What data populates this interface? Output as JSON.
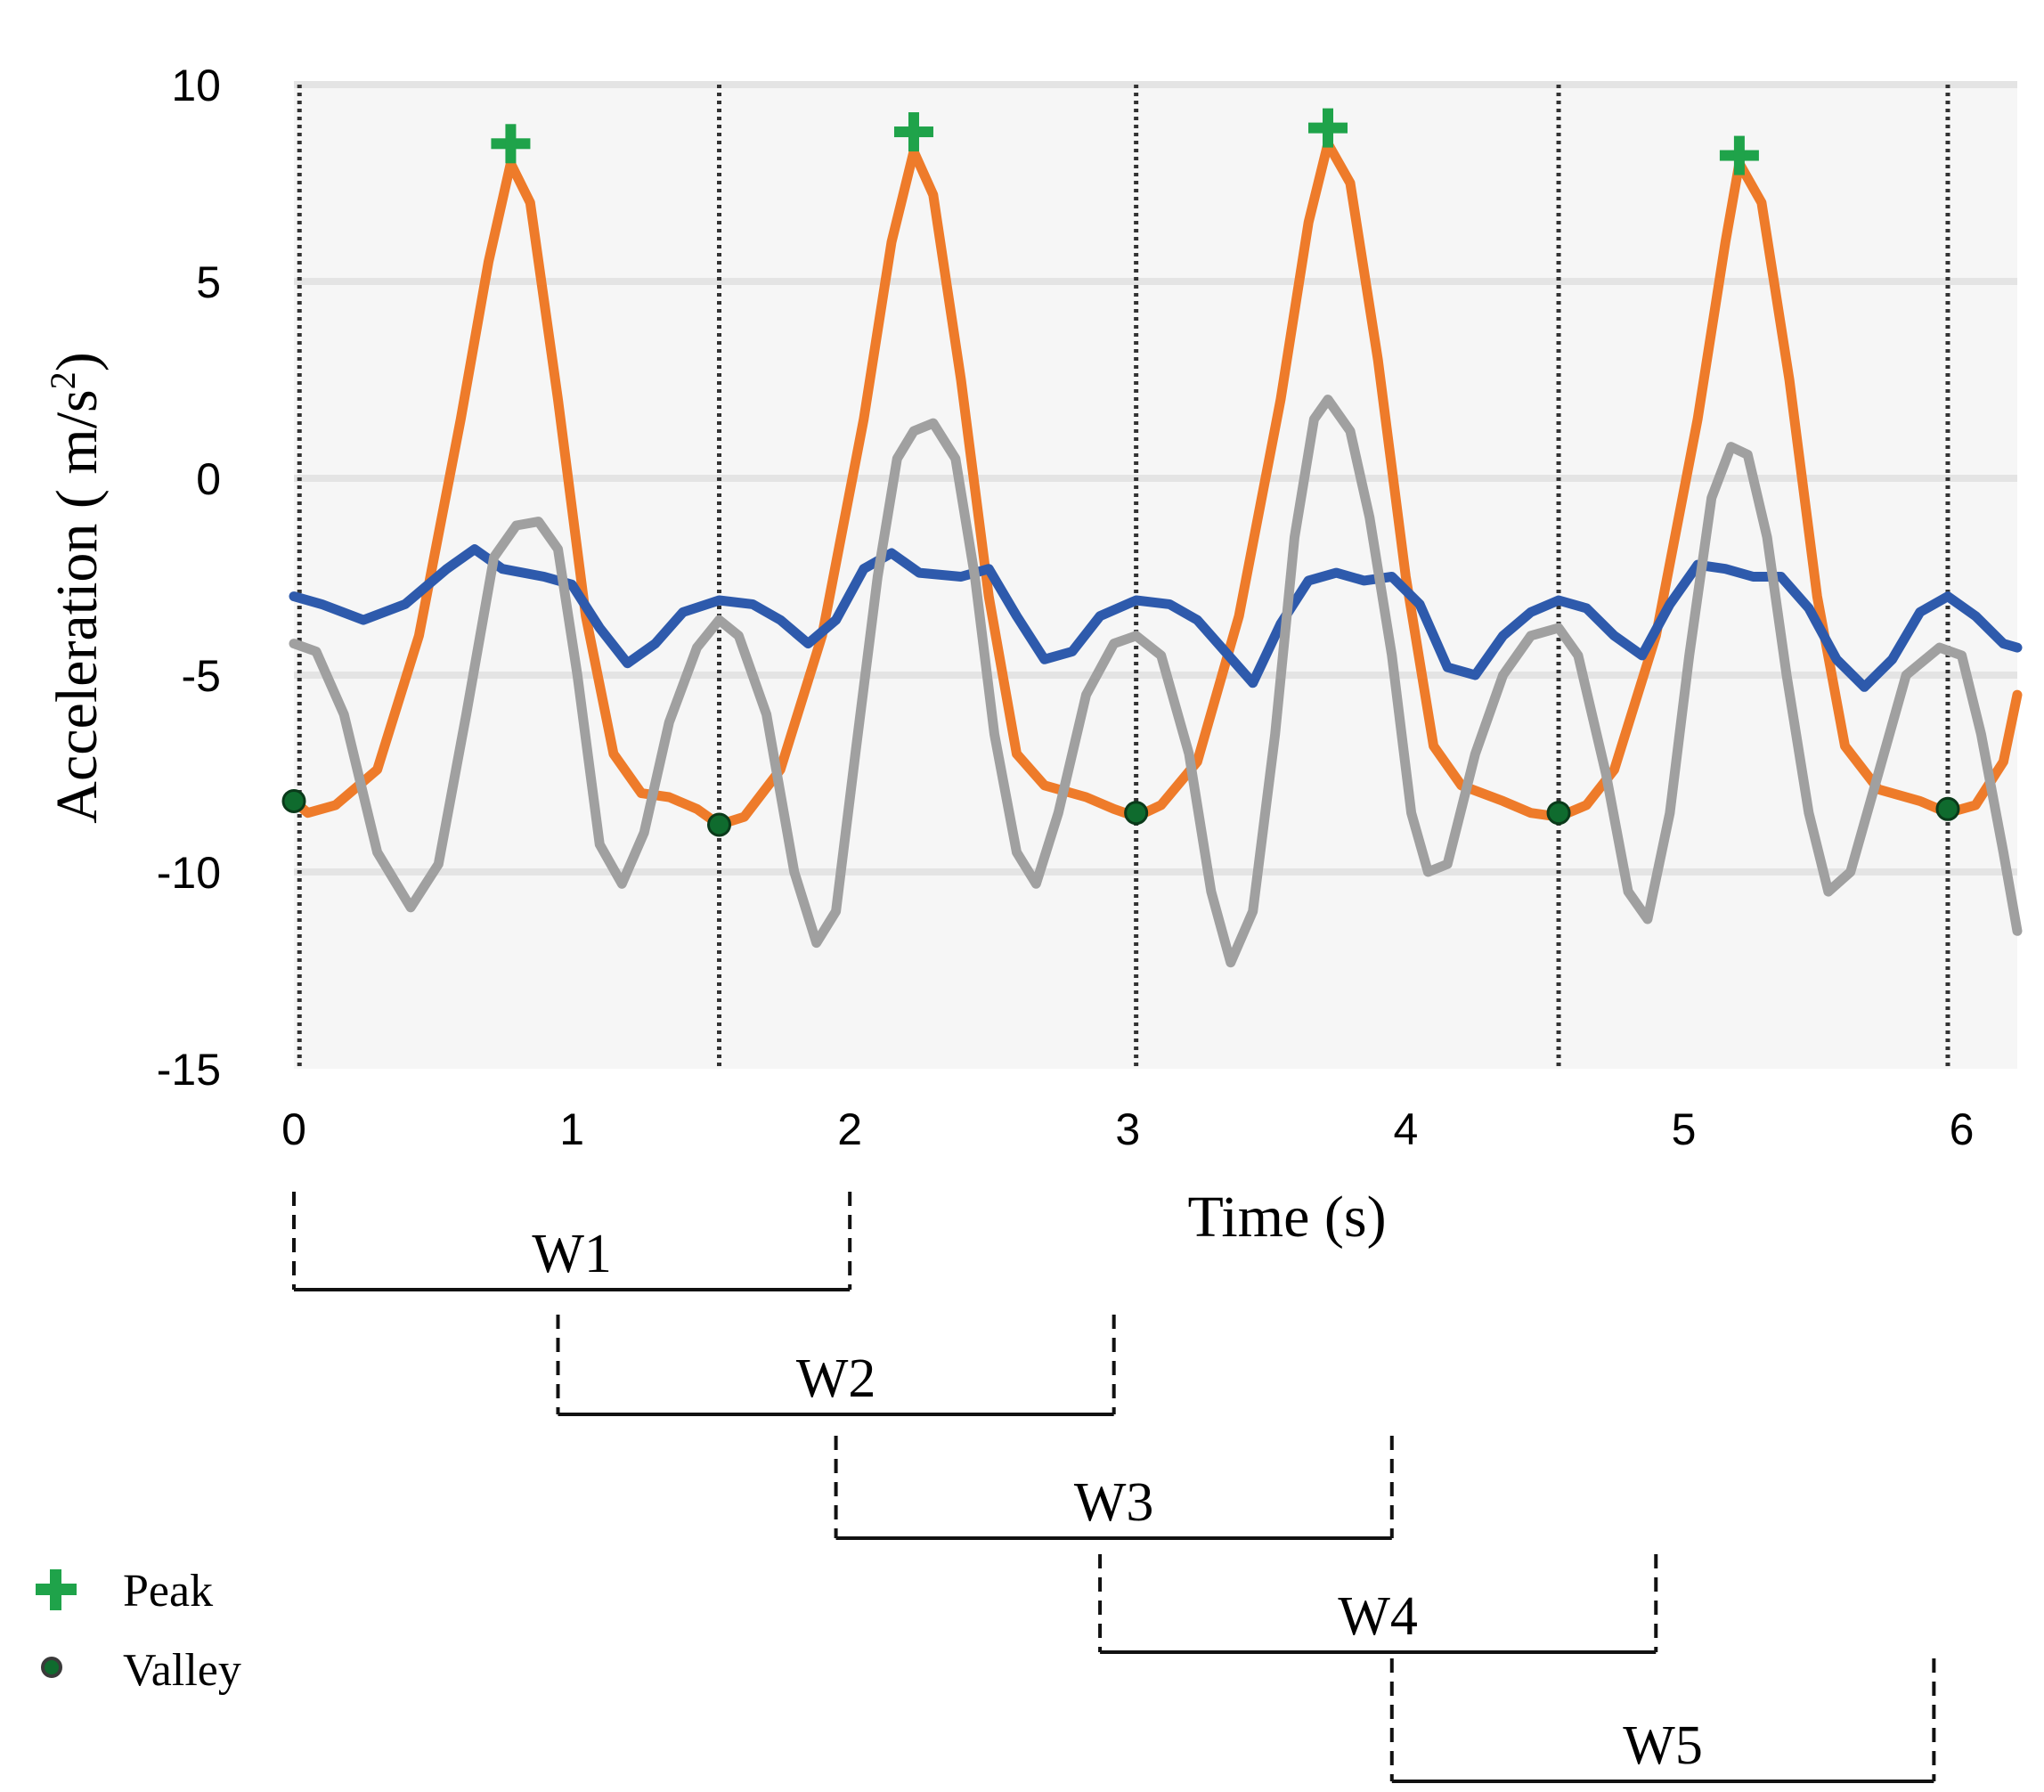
{
  "chart_data": {
    "type": "line",
    "xlabel": "Time (s)",
    "ylabel_text": "Acceleration ( m/s",
    "ylabel_sup": "2",
    "ylabel_close": ")",
    "xlim": [
      0,
      6.2
    ],
    "ylim": [
      -15,
      10
    ],
    "x_ticks": [
      0,
      1,
      2,
      3,
      4,
      5,
      6
    ],
    "y_ticks": [
      10,
      5,
      0,
      -5,
      -10,
      -15
    ],
    "grid": "horizontal",
    "segment_boundaries": [
      0.02,
      1.53,
      3.03,
      4.55,
      5.95
    ],
    "series": [
      {
        "name": "orange",
        "color": "#EE7B2A",
        "points": [
          [
            0,
            -8.2
          ],
          [
            0.05,
            -8.5
          ],
          [
            0.15,
            -8.3
          ],
          [
            0.3,
            -7.4
          ],
          [
            0.45,
            -4
          ],
          [
            0.6,
            1.5
          ],
          [
            0.7,
            5.5
          ],
          [
            0.78,
            8
          ],
          [
            0.85,
            7
          ],
          [
            0.95,
            2
          ],
          [
            1.05,
            -3.5
          ],
          [
            1.15,
            -7
          ],
          [
            1.25,
            -8
          ],
          [
            1.35,
            -8.1
          ],
          [
            1.45,
            -8.4
          ],
          [
            1.53,
            -8.8
          ],
          [
            1.62,
            -8.6
          ],
          [
            1.75,
            -7.4
          ],
          [
            1.9,
            -4
          ],
          [
            2.05,
            1.5
          ],
          [
            2.15,
            6
          ],
          [
            2.23,
            8.3
          ],
          [
            2.3,
            7.2
          ],
          [
            2.4,
            2.5
          ],
          [
            2.5,
            -3
          ],
          [
            2.6,
            -7
          ],
          [
            2.7,
            -7.8
          ],
          [
            2.85,
            -8.1
          ],
          [
            2.95,
            -8.4
          ],
          [
            3.03,
            -8.6
          ],
          [
            3.12,
            -8.3
          ],
          [
            3.25,
            -7.2
          ],
          [
            3.4,
            -3.5
          ],
          [
            3.55,
            2
          ],
          [
            3.65,
            6.5
          ],
          [
            3.72,
            8.5
          ],
          [
            3.8,
            7.5
          ],
          [
            3.9,
            3
          ],
          [
            4.0,
            -2.5
          ],
          [
            4.1,
            -6.8
          ],
          [
            4.2,
            -7.8
          ],
          [
            4.35,
            -8.2
          ],
          [
            4.45,
            -8.5
          ],
          [
            4.55,
            -8.6
          ],
          [
            4.65,
            -8.3
          ],
          [
            4.75,
            -7.4
          ],
          [
            4.9,
            -4
          ],
          [
            5.05,
            1.5
          ],
          [
            5.15,
            6
          ],
          [
            5.2,
            8
          ],
          [
            5.28,
            7
          ],
          [
            5.38,
            2.5
          ],
          [
            5.48,
            -3
          ],
          [
            5.58,
            -6.8
          ],
          [
            5.7,
            -7.9
          ],
          [
            5.85,
            -8.2
          ],
          [
            5.95,
            -8.5
          ],
          [
            6.05,
            -8.3
          ],
          [
            6.15,
            -7.2
          ],
          [
            6.2,
            -5.5
          ]
        ]
      },
      {
        "name": "blue",
        "color": "#2E5AAC",
        "points": [
          [
            0,
            -3
          ],
          [
            0.1,
            -3.2
          ],
          [
            0.25,
            -3.6
          ],
          [
            0.4,
            -3.2
          ],
          [
            0.55,
            -2.3
          ],
          [
            0.65,
            -1.8
          ],
          [
            0.75,
            -2.3
          ],
          [
            0.9,
            -2.5
          ],
          [
            1.0,
            -2.7
          ],
          [
            1.1,
            -3.8
          ],
          [
            1.2,
            -4.7
          ],
          [
            1.3,
            -4.2
          ],
          [
            1.4,
            -3.4
          ],
          [
            1.53,
            -3.1
          ],
          [
            1.65,
            -3.2
          ],
          [
            1.75,
            -3.6
          ],
          [
            1.85,
            -4.2
          ],
          [
            1.95,
            -3.6
          ],
          [
            2.05,
            -2.3
          ],
          [
            2.15,
            -1.9
          ],
          [
            2.25,
            -2.4
          ],
          [
            2.4,
            -2.5
          ],
          [
            2.5,
            -2.3
          ],
          [
            2.6,
            -3.5
          ],
          [
            2.7,
            -4.6
          ],
          [
            2.8,
            -4.4
          ],
          [
            2.9,
            -3.5
          ],
          [
            3.03,
            -3.1
          ],
          [
            3.15,
            -3.2
          ],
          [
            3.25,
            -3.6
          ],
          [
            3.35,
            -4.4
          ],
          [
            3.45,
            -5.2
          ],
          [
            3.55,
            -3.7
          ],
          [
            3.65,
            -2.6
          ],
          [
            3.75,
            -2.4
          ],
          [
            3.85,
            -2.6
          ],
          [
            3.95,
            -2.5
          ],
          [
            4.05,
            -3.2
          ],
          [
            4.15,
            -4.8
          ],
          [
            4.25,
            -5
          ],
          [
            4.35,
            -4
          ],
          [
            4.45,
            -3.4
          ],
          [
            4.55,
            -3.1
          ],
          [
            4.65,
            -3.3
          ],
          [
            4.75,
            -4
          ],
          [
            4.85,
            -4.5
          ],
          [
            4.95,
            -3.2
          ],
          [
            5.05,
            -2.2
          ],
          [
            5.15,
            -2.3
          ],
          [
            5.25,
            -2.5
          ],
          [
            5.35,
            -2.5
          ],
          [
            5.45,
            -3.3
          ],
          [
            5.55,
            -4.6
          ],
          [
            5.65,
            -5.3
          ],
          [
            5.75,
            -4.6
          ],
          [
            5.85,
            -3.4
          ],
          [
            5.95,
            -3
          ],
          [
            6.05,
            -3.5
          ],
          [
            6.15,
            -4.2
          ],
          [
            6.2,
            -4.3
          ]
        ]
      },
      {
        "name": "gray",
        "color": "#A0A0A0",
        "points": [
          [
            0,
            -4.2
          ],
          [
            0.08,
            -4.4
          ],
          [
            0.18,
            -6
          ],
          [
            0.3,
            -9.5
          ],
          [
            0.42,
            -10.9
          ],
          [
            0.52,
            -9.8
          ],
          [
            0.62,
            -6
          ],
          [
            0.72,
            -2
          ],
          [
            0.8,
            -1.2
          ],
          [
            0.88,
            -1.1
          ],
          [
            0.95,
            -1.8
          ],
          [
            1.02,
            -5
          ],
          [
            1.1,
            -9.3
          ],
          [
            1.18,
            -10.3
          ],
          [
            1.26,
            -9
          ],
          [
            1.35,
            -6.2
          ],
          [
            1.45,
            -4.3
          ],
          [
            1.53,
            -3.6
          ],
          [
            1.6,
            -4
          ],
          [
            1.7,
            -6
          ],
          [
            1.8,
            -10
          ],
          [
            1.88,
            -11.8
          ],
          [
            1.95,
            -11
          ],
          [
            2.02,
            -7
          ],
          [
            2.1,
            -2.5
          ],
          [
            2.17,
            0.5
          ],
          [
            2.23,
            1.2
          ],
          [
            2.3,
            1.4
          ],
          [
            2.38,
            0.5
          ],
          [
            2.45,
            -2.5
          ],
          [
            2.52,
            -6.5
          ],
          [
            2.6,
            -9.5
          ],
          [
            2.67,
            -10.3
          ],
          [
            2.75,
            -8.5
          ],
          [
            2.85,
            -5.5
          ],
          [
            2.95,
            -4.2
          ],
          [
            3.03,
            -4
          ],
          [
            3.12,
            -4.5
          ],
          [
            3.22,
            -7
          ],
          [
            3.3,
            -10.5
          ],
          [
            3.37,
            -12.3
          ],
          [
            3.45,
            -11
          ],
          [
            3.53,
            -6.5
          ],
          [
            3.6,
            -1.5
          ],
          [
            3.67,
            1.5
          ],
          [
            3.72,
            2
          ],
          [
            3.8,
            1.2
          ],
          [
            3.87,
            -1
          ],
          [
            3.95,
            -4.5
          ],
          [
            4.02,
            -8.5
          ],
          [
            4.08,
            -10
          ],
          [
            4.15,
            -9.8
          ],
          [
            4.25,
            -7
          ],
          [
            4.35,
            -5
          ],
          [
            4.45,
            -4
          ],
          [
            4.55,
            -3.8
          ],
          [
            4.62,
            -4.5
          ],
          [
            4.72,
            -7.5
          ],
          [
            4.8,
            -10.5
          ],
          [
            4.87,
            -11.2
          ],
          [
            4.95,
            -8.5
          ],
          [
            5.02,
            -4.5
          ],
          [
            5.1,
            -0.5
          ],
          [
            5.17,
            0.8
          ],
          [
            5.23,
            0.6
          ],
          [
            5.3,
            -1.5
          ],
          [
            5.37,
            -5
          ],
          [
            5.45,
            -8.5
          ],
          [
            5.52,
            -10.5
          ],
          [
            5.6,
            -10
          ],
          [
            5.7,
            -7.5
          ],
          [
            5.8,
            -5
          ],
          [
            5.92,
            -4.3
          ],
          [
            6.0,
            -4.5
          ],
          [
            6.07,
            -6.5
          ],
          [
            6.15,
            -9.5
          ],
          [
            6.2,
            -11.5
          ]
        ]
      }
    ],
    "peaks": [
      [
        0.78,
        8.5
      ],
      [
        2.23,
        8.8
      ],
      [
        3.72,
        8.9
      ],
      [
        5.2,
        8.2
      ]
    ],
    "valleys": [
      [
        0.0,
        -8.2
      ],
      [
        1.53,
        -8.8
      ],
      [
        3.03,
        -8.5
      ],
      [
        4.55,
        -8.5
      ],
      [
        5.95,
        -8.4
      ]
    ],
    "windows": [
      {
        "label": "W1",
        "start": 0,
        "end": 2
      },
      {
        "label": "W2",
        "start": 0.95,
        "end": 2.95
      },
      {
        "label": "W3",
        "start": 1.95,
        "end": 3.95
      },
      {
        "label": "W4",
        "start": 2.9,
        "end": 4.9
      },
      {
        "label": "W5",
        "start": 3.95,
        "end": 5.9
      }
    ],
    "legend": {
      "position": "bottom-left",
      "peak_label": "Peak",
      "valley_label": "Valley",
      "peak_color": "#1FA34A",
      "valley_color": "#0F6B2E"
    },
    "grid_color": "#E4E4E4",
    "boundary_color": "#333333"
  }
}
